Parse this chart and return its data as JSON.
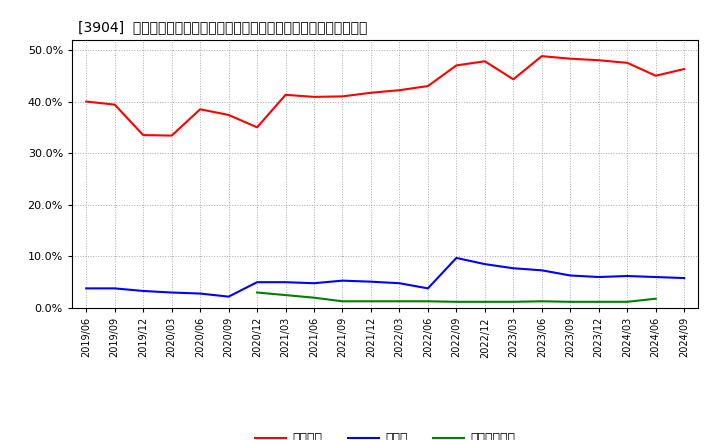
{
  "title": "[3904]  自己資本、のれん、繰延税金資産の総資産に対する比率の推移",
  "x_labels": [
    "2019/06",
    "2019/09",
    "2019/12",
    "2020/03",
    "2020/06",
    "2020/09",
    "2020/12",
    "2021/03",
    "2021/06",
    "2021/09",
    "2021/12",
    "2022/03",
    "2022/06",
    "2022/09",
    "2022/12",
    "2023/03",
    "2023/06",
    "2023/09",
    "2023/12",
    "2024/03",
    "2024/06",
    "2024/09"
  ],
  "equity": [
    0.4,
    0.394,
    0.335,
    0.334,
    0.385,
    0.374,
    0.35,
    0.413,
    0.409,
    0.41,
    0.417,
    0.422,
    0.43,
    0.47,
    0.478,
    0.443,
    0.488,
    0.483,
    0.48,
    0.475,
    0.45,
    0.463
  ],
  "goodwill": [
    0.038,
    0.038,
    0.033,
    0.03,
    0.028,
    0.022,
    0.05,
    0.05,
    0.048,
    0.053,
    0.051,
    0.048,
    0.038,
    0.097,
    0.085,
    0.077,
    0.073,
    0.063,
    0.06,
    0.062,
    0.06,
    0.058
  ],
  "deferred_tax": [
    null,
    null,
    null,
    null,
    null,
    null,
    0.03,
    0.025,
    0.02,
    0.013,
    0.013,
    0.013,
    0.013,
    0.012,
    0.012,
    0.012,
    0.013,
    0.012,
    0.012,
    0.012,
    0.018,
    null
  ],
  "equity_color": "#ff0000",
  "goodwill_color": "#0000ff",
  "deferred_color": "#008000",
  "ylim": [
    0.0,
    0.52
  ],
  "yticks": [
    0.0,
    0.1,
    0.2,
    0.3,
    0.4,
    0.5
  ],
  "legend_label_equity": "自己資本",
  "legend_label_goodwill": "のれん",
  "legend_label_deferred": "繰延税金資産",
  "bg_color": "#ffffff",
  "grid_color": "#aaaaaa"
}
